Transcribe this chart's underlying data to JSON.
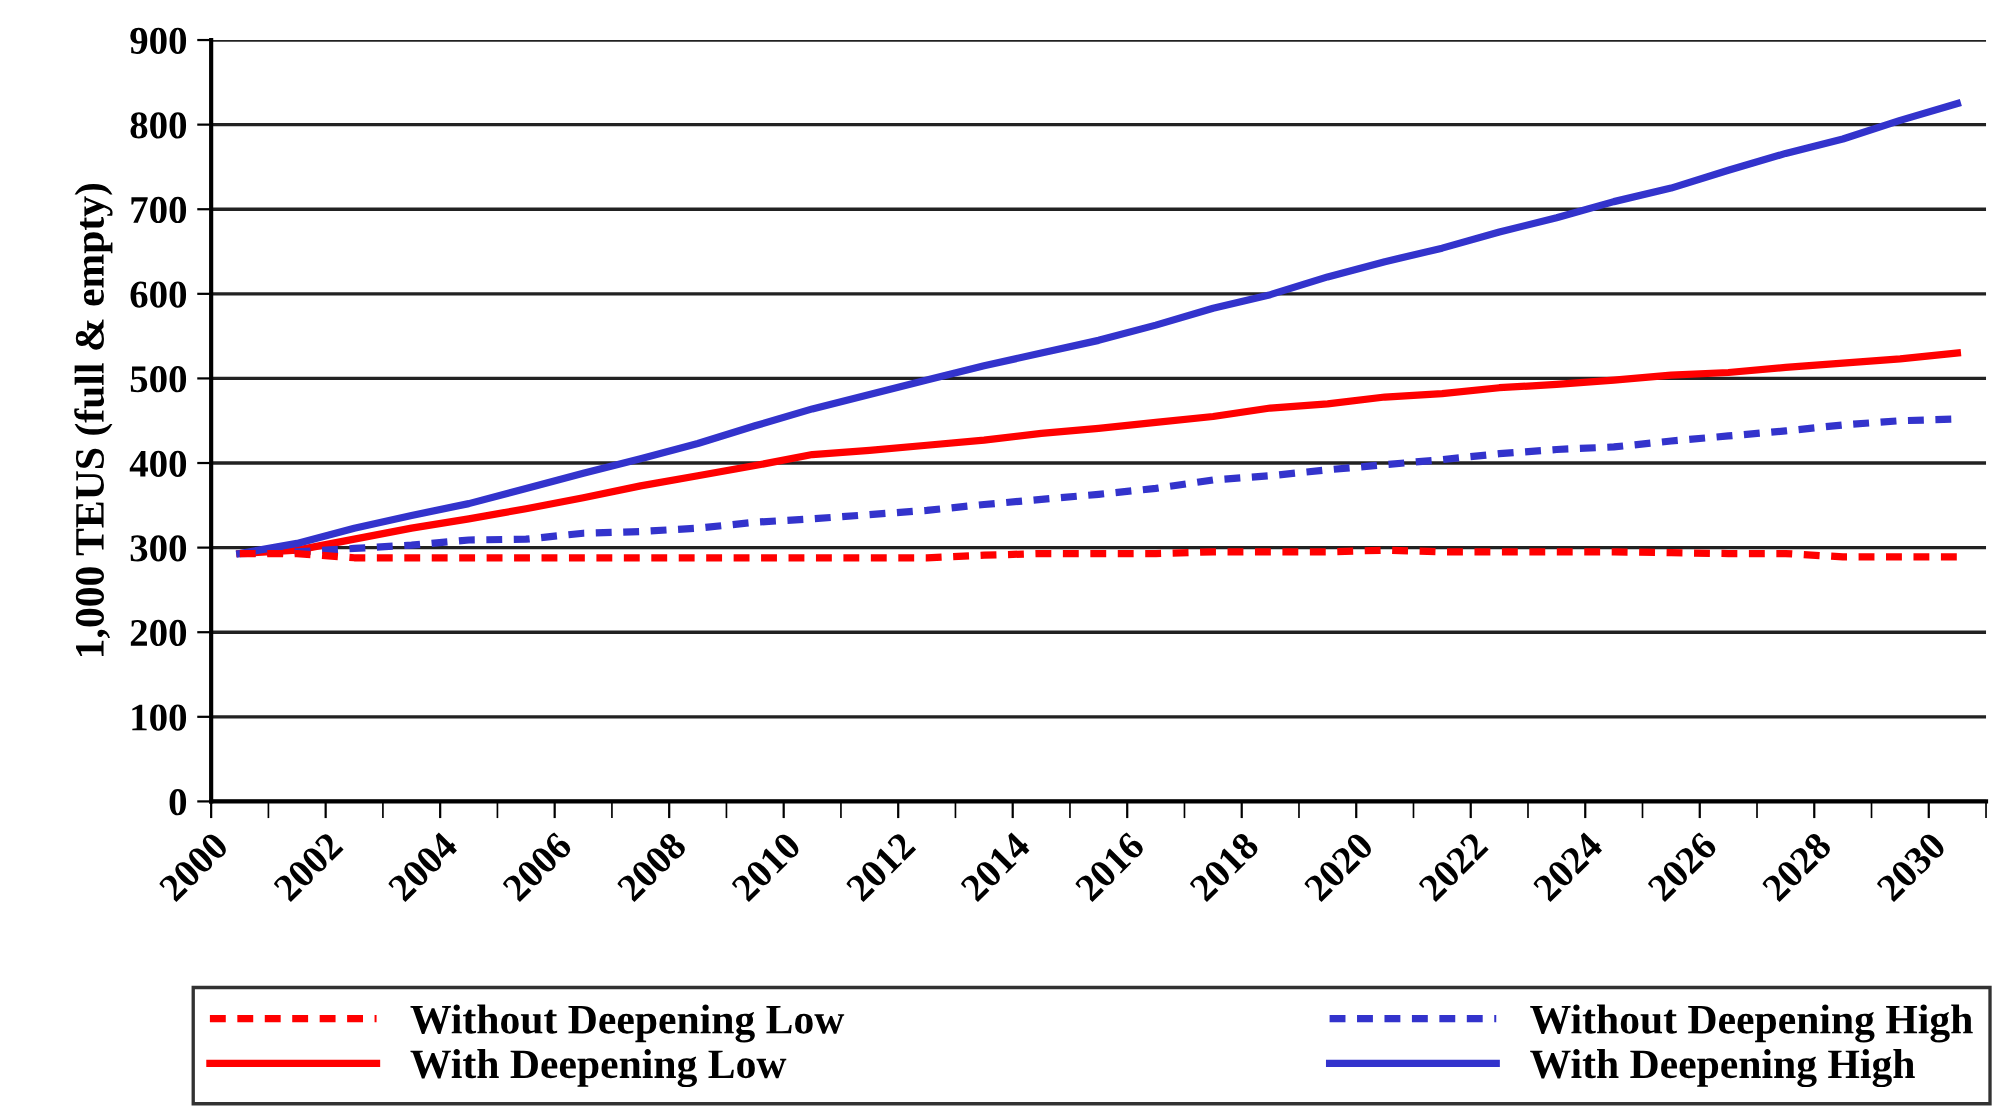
{
  "chart_data": {
    "type": "line",
    "ylabel": "1,000 TEUS (full & empty)",
    "x": [
      2000.5,
      2001.5,
      2002.5,
      2003.5,
      2004.5,
      2005.5,
      2006.5,
      2007.5,
      2008.5,
      2009.5,
      2010.5,
      2011.5,
      2012.5,
      2013.5,
      2014.5,
      2015.5,
      2016.5,
      2017.5,
      2018.5,
      2019.5,
      2020.5,
      2021.5,
      2022.5,
      2023.5,
      2024.5,
      2025.5,
      2026.5,
      2027.5,
      2028.5,
      2029.5,
      2030.5
    ],
    "xlim": [
      2000,
      2031
    ],
    "xticks": [
      2000,
      2002,
      2004,
      2006,
      2008,
      2010,
      2012,
      2014,
      2016,
      2018,
      2020,
      2022,
      2024,
      2026,
      2028,
      2030,
      {
        "value": 2001,
        "label": null
      },
      {
        "value": 2003,
        "label": null
      },
      {
        "value": 2005,
        "label": null
      },
      {
        "value": 2007,
        "label": null
      },
      {
        "value": 2009,
        "label": null
      },
      {
        "value": 2011,
        "label": null
      },
      {
        "value": 2013,
        "label": null
      },
      {
        "value": 2015,
        "label": null
      },
      {
        "value": 2017,
        "label": null
      },
      {
        "value": 2019,
        "label": null
      },
      {
        "value": 2021,
        "label": null
      },
      {
        "value": 2023,
        "label": null
      },
      {
        "value": 2025,
        "label": null
      },
      {
        "value": 2027,
        "label": null
      },
      {
        "value": 2029,
        "label": null
      },
      {
        "value": 2031,
        "label": null
      }
    ],
    "ylim": [
      0,
      900
    ],
    "yticks": [
      0,
      100,
      200,
      300,
      400,
      500,
      600,
      700,
      800,
      900
    ],
    "grid": "y",
    "legend": "bottom",
    "marker": "none",
    "series": [
      {
        "name": "Without Deepening Low",
        "color": "#ff0000",
        "line_style": "dashed",
        "values": [
          293,
          293,
          288,
          288,
          288,
          288,
          288,
          288,
          288,
          288,
          288,
          288,
          288,
          291,
          293,
          293,
          293,
          295,
          295,
          295,
          297,
          295,
          295,
          295,
          295,
          294,
          293,
          293,
          289,
          289,
          289
        ]
      },
      {
        "name": "Without Deepening High",
        "color": "#3333cc",
        "line_style": "dashed",
        "values": [
          293,
          295,
          299,
          303,
          309,
          310,
          317,
          319,
          323,
          330,
          334,
          339,
          344,
          351,
          357,
          363,
          370,
          380,
          385,
          392,
          398,
          404,
          411,
          416,
          419,
          426,
          432,
          438,
          445,
          450,
          452
        ]
      },
      {
        "name": "With Deepening Low",
        "color": "#ff0000",
        "line_style": "solid",
        "values": [
          293,
          297,
          310,
          323,
          334,
          346,
          359,
          373,
          385,
          397,
          410,
          415,
          421,
          427,
          435,
          441,
          448,
          455,
          465,
          470,
          478,
          482,
          489,
          493,
          498,
          504,
          507,
          513,
          518,
          523,
          530
        ]
      },
      {
        "name": "With Deepening High",
        "color": "#3333cc",
        "line_style": "solid",
        "values": [
          293,
          305,
          323,
          338,
          352,
          370,
          388,
          405,
          423,
          444,
          464,
          481,
          498,
          515,
          530,
          545,
          563,
          583,
          599,
          620,
          638,
          654,
          673,
          690,
          709,
          725,
          746,
          766,
          783,
          805,
          825
        ]
      }
    ]
  }
}
